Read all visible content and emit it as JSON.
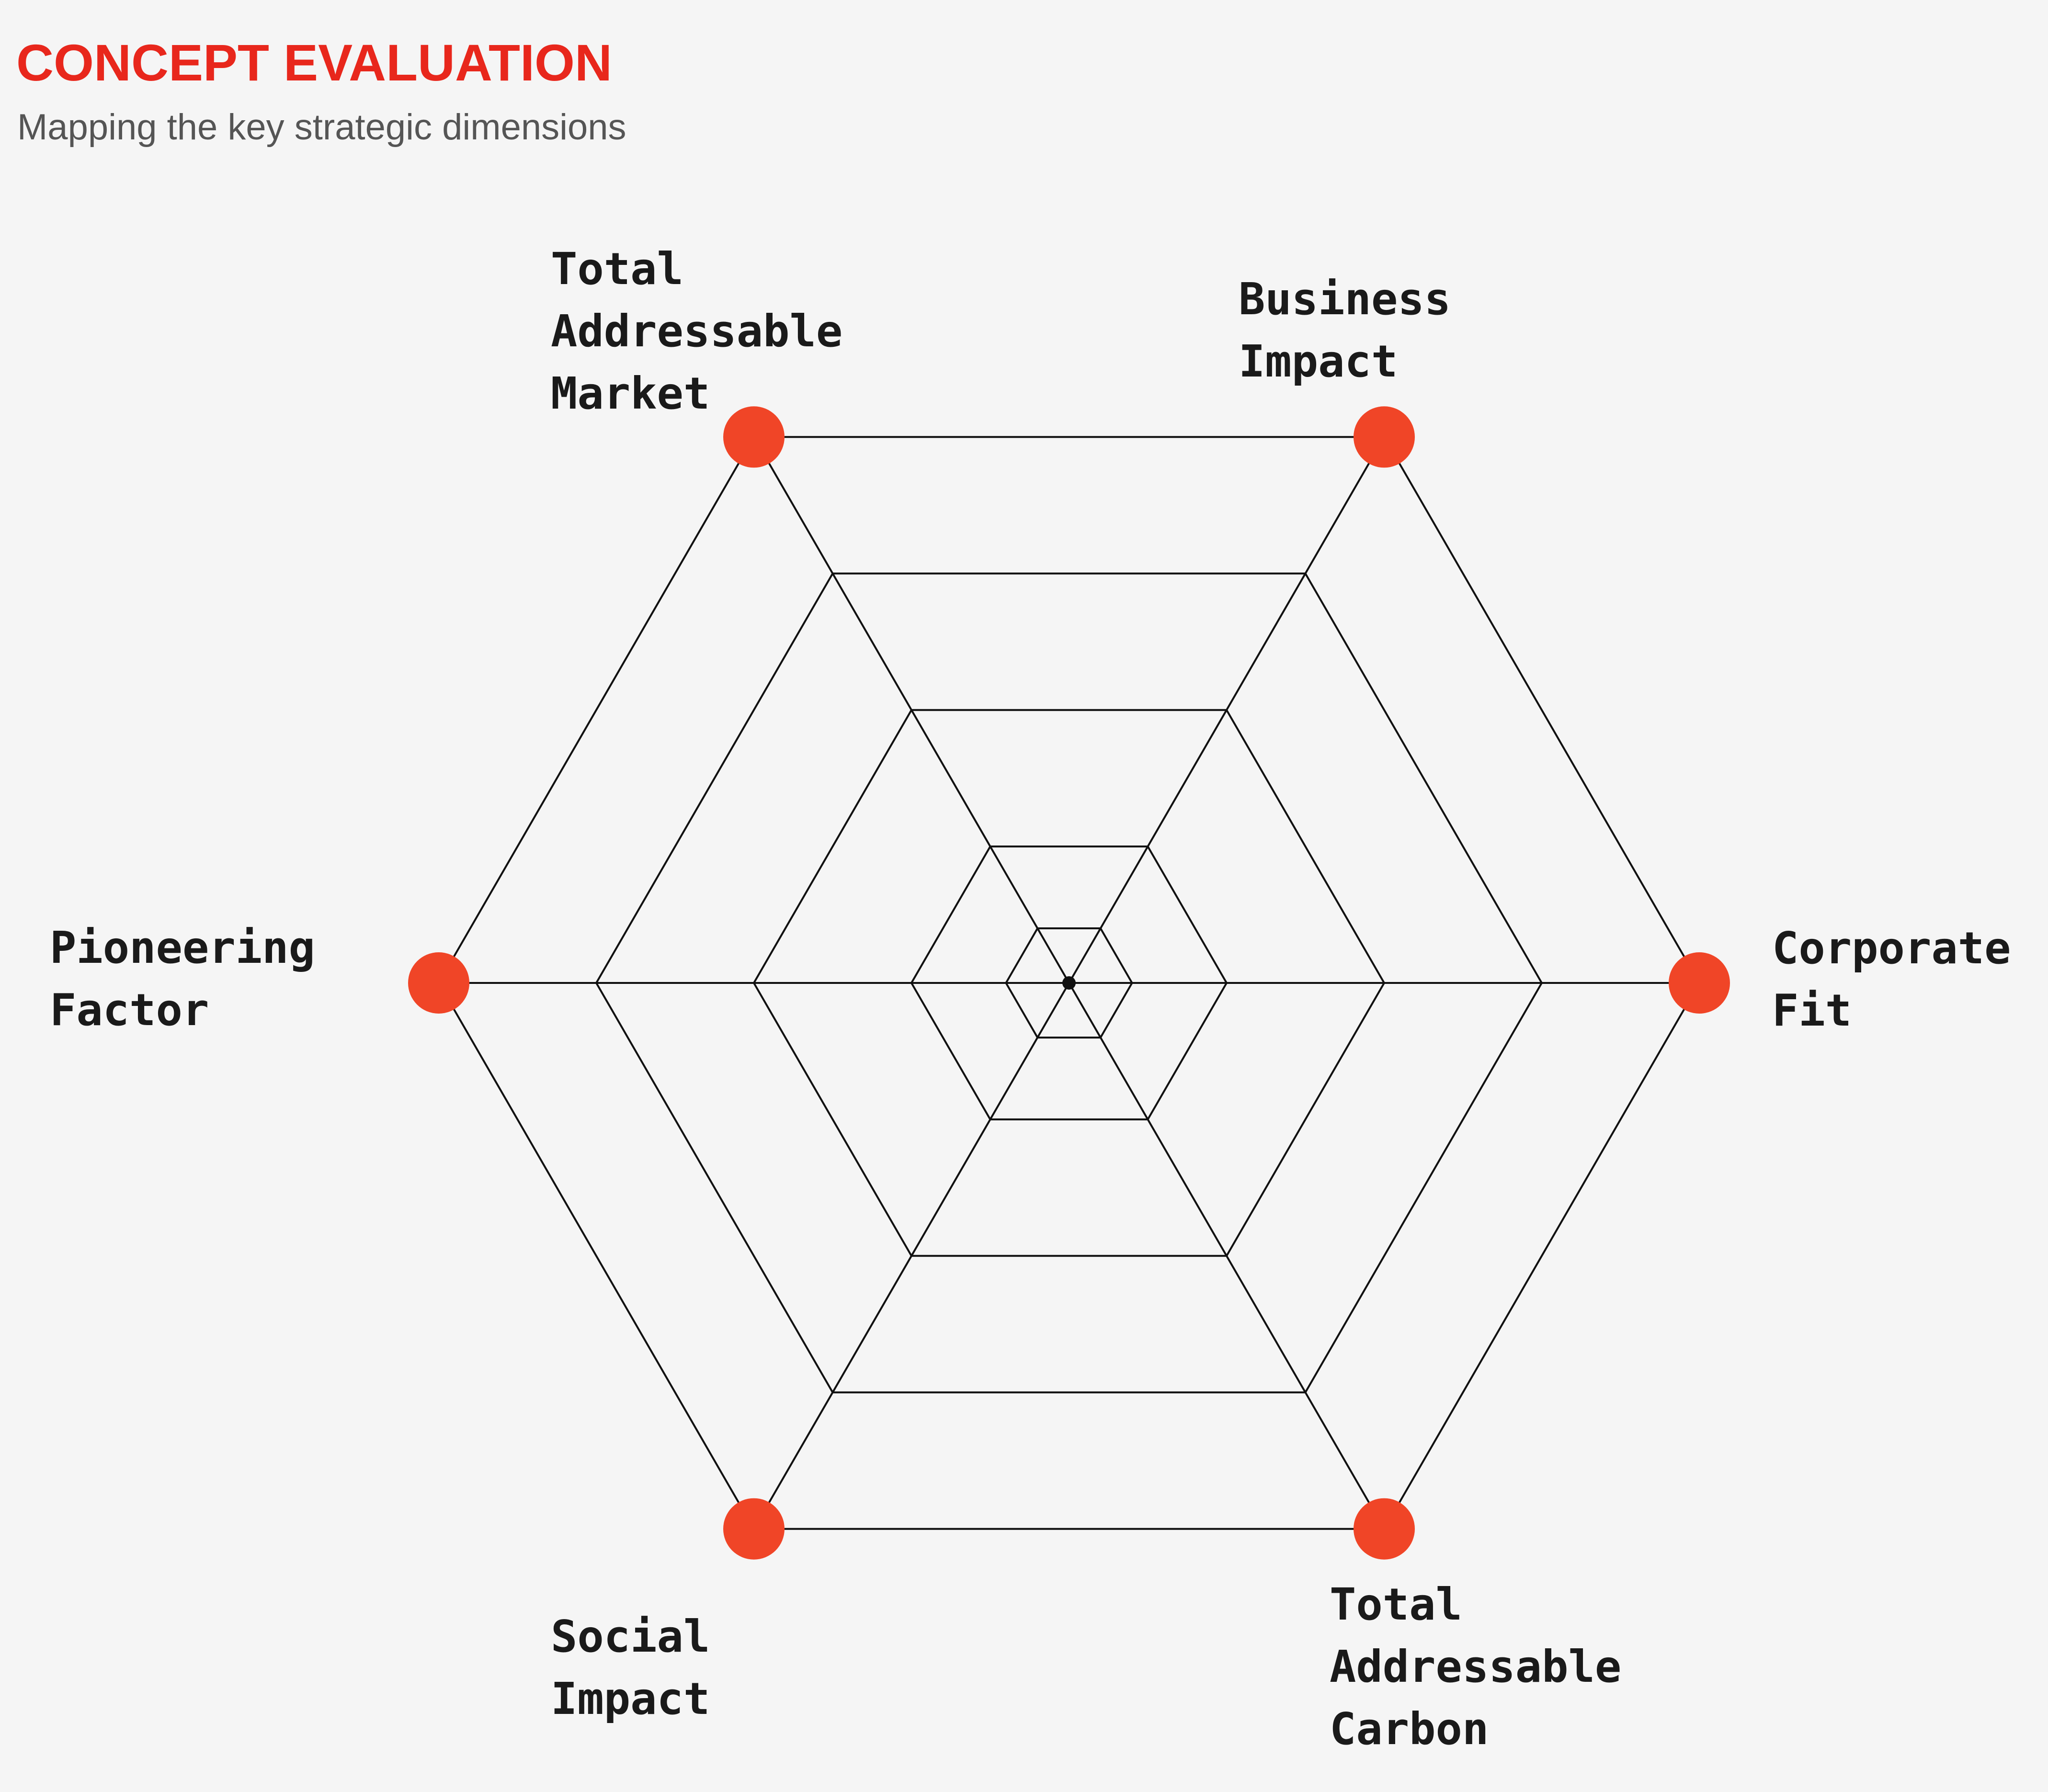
{
  "header": {
    "title": "CONCEPT EVALUATION",
    "subtitle": "Mapping the key strategic dimensions"
  },
  "colors": {
    "accent": "#e8271c",
    "marker": "#f04527",
    "grid": "#111111",
    "background": "#f5f5f5",
    "label": "#1a1a1a"
  },
  "chart_data": {
    "type": "radar",
    "title": "CONCEPT EVALUATION",
    "subtitle": "Mapping the key strategic dimensions",
    "grid_rings": 5,
    "axes": [
      {
        "key": "corporate_fit",
        "lines": [
          "Corporate",
          "Fit"
        ]
      },
      {
        "key": "business_impact",
        "lines": [
          "Business",
          "Impact"
        ]
      },
      {
        "key": "total_addressable_market",
        "lines": [
          "Total",
          "Addressable",
          "Market"
        ]
      },
      {
        "key": "pioneering_factor",
        "lines": [
          "Pioneering",
          "Factor"
        ]
      },
      {
        "key": "social_impact",
        "lines": [
          "Social",
          "Impact"
        ]
      },
      {
        "key": "total_addressable_carbon",
        "lines": [
          "Total",
          "Addressable",
          "Carbon"
        ]
      }
    ],
    "series": [
      {
        "values": [
          1,
          1,
          1,
          1,
          1,
          1
        ],
        "marker_color": "#f04527"
      }
    ]
  }
}
